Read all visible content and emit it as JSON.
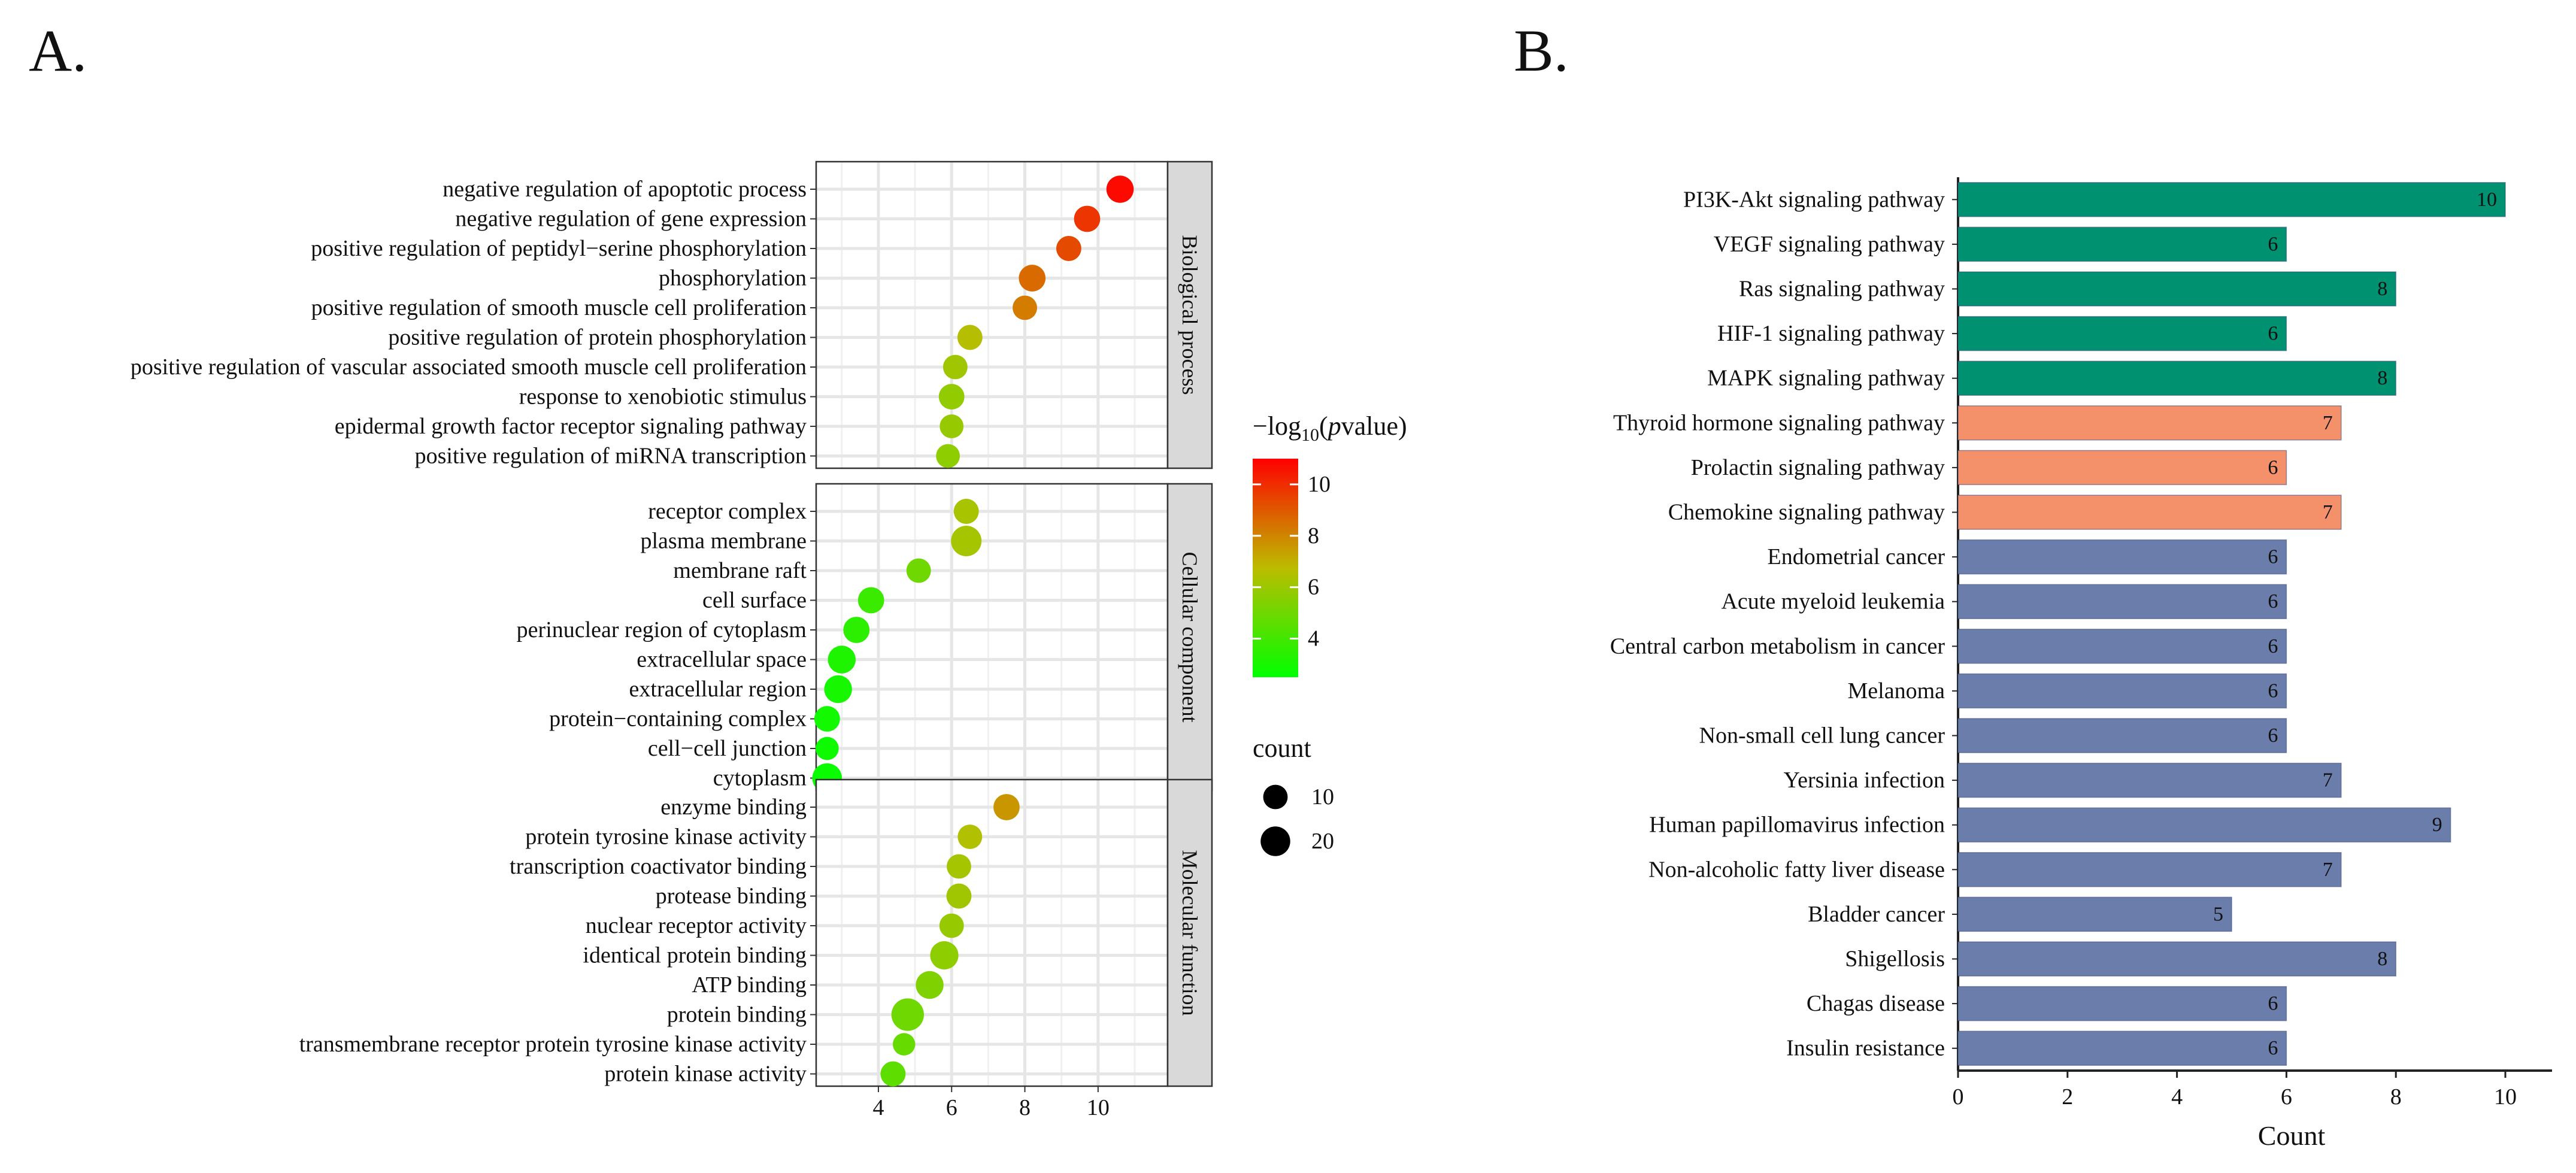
{
  "panel_labels": [
    "A.",
    "B."
  ],
  "chart_data": [
    {
      "type": "scatter",
      "panel": "A.",
      "x_ticks": [
        4,
        6,
        8,
        10
      ],
      "xlim": [
        2.3,
        11.9
      ],
      "facets": [
        {
          "name": "Biological process",
          "terms": [
            {
              "label": "negative regulation of apoptotic process",
              "x": 10.6,
              "count": 15,
              "neglog10p": 10.8
            },
            {
              "label": "negative regulation of gene expression",
              "x": 9.7,
              "count": 13,
              "neglog10p": 9.8
            },
            {
              "label": "positive regulation of peptidyl−serine phosphorylation",
              "x": 9.2,
              "count": 11,
              "neglog10p": 9.3
            },
            {
              "label": "phosphorylation",
              "x": 8.2,
              "count": 14,
              "neglog10p": 8.6
            },
            {
              "label": "positive regulation of smooth muscle cell proliferation",
              "x": 8.0,
              "count": 10,
              "neglog10p": 8.2
            },
            {
              "label": "positive regulation of protein phosphorylation",
              "x": 6.5,
              "count": 11,
              "neglog10p": 6.6
            },
            {
              "label": "positive regulation of vascular associated smooth muscle cell proliferation",
              "x": 6.1,
              "count": 10,
              "neglog10p": 6.1
            },
            {
              "label": "response to xenobiotic stimulus",
              "x": 6.0,
              "count": 12,
              "neglog10p": 5.8
            },
            {
              "label": "epidermal growth factor receptor signaling pathway",
              "x": 6.0,
              "count": 9,
              "neglog10p": 5.9
            },
            {
              "label": "positive regulation of miRNA transcription",
              "x": 5.9,
              "count": 9,
              "neglog10p": 5.7
            }
          ]
        },
        {
          "name": "Cellular component",
          "terms": [
            {
              "label": "receptor complex",
              "x": 6.4,
              "count": 11,
              "neglog10p": 6.3
            },
            {
              "label": "plasma membrane",
              "x": 6.4,
              "count": 22,
              "neglog10p": 6.2
            },
            {
              "label": "membrane raft",
              "x": 5.1,
              "count": 10,
              "neglog10p": 5.0
            },
            {
              "label": "cell surface",
              "x": 3.8,
              "count": 13,
              "neglog10p": 3.8
            },
            {
              "label": "perinuclear region of cytoplasm",
              "x": 3.4,
              "count": 13,
              "neglog10p": 3.5
            },
            {
              "label": "extracellular space",
              "x": 3.0,
              "count": 16,
              "neglog10p": 3.2
            },
            {
              "label": "extracellular region",
              "x": 2.9,
              "count": 16,
              "neglog10p": 3.0
            },
            {
              "label": "protein−containing complex",
              "x": 2.6,
              "count": 12,
              "neglog10p": 2.9
            },
            {
              "label": "cell−cell junction",
              "x": 2.6,
              "count": 8,
              "neglog10p": 2.8
            },
            {
              "label": "cytoplasm",
              "x": 2.6,
              "count": 20,
              "neglog10p": 2.7
            }
          ]
        },
        {
          "name": "Molecular function",
          "terms": [
            {
              "label": "enzyme binding",
              "x": 7.5,
              "count": 13,
              "neglog10p": 7.6
            },
            {
              "label": "protein tyrosine kinase activity",
              "x": 6.5,
              "count": 10,
              "neglog10p": 6.5
            },
            {
              "label": "transcription coactivator binding",
              "x": 6.2,
              "count": 10,
              "neglog10p": 6.2
            },
            {
              "label": "protease binding",
              "x": 6.2,
              "count": 11,
              "neglog10p": 6.1
            },
            {
              "label": "nuclear receptor activity",
              "x": 6.0,
              "count": 10,
              "neglog10p": 5.9
            },
            {
              "label": "identical protein binding",
              "x": 5.8,
              "count": 17,
              "neglog10p": 5.7
            },
            {
              "label": "ATP binding",
              "x": 5.4,
              "count": 16,
              "neglog10p": 5.4
            },
            {
              "label": "protein binding",
              "x": 4.8,
              "count": 27,
              "neglog10p": 5.0
            },
            {
              "label": "transmembrane receptor protein tyrosine kinase activity",
              "x": 4.7,
              "count": 7,
              "neglog10p": 4.8
            },
            {
              "label": "protein kinase activity",
              "x": 4.4,
              "count": 11,
              "neglog10p": 4.6
            }
          ]
        }
      ],
      "color_legend": {
        "title_prefix": "−log",
        "title_sub": "10",
        "title_open": "(",
        "title_italic": "p",
        "title_rest": "value)",
        "ticks": [
          4,
          6,
          8,
          10
        ],
        "range": [
          2.5,
          11.0
        ],
        "colors": [
          "#00ff00",
          "#bcbc00",
          "#ff0000"
        ]
      },
      "size_legend": {
        "title": "count",
        "values": [
          10,
          20
        ]
      }
    },
    {
      "type": "bar",
      "panel": "B.",
      "orientation": "horizontal",
      "xlabel": "Count",
      "xlim": [
        0,
        10.8
      ],
      "x_ticks": [
        0,
        2,
        4,
        6,
        8,
        10
      ],
      "group_colors": [
        "#009270",
        "#f4906a",
        "#6b7dab"
      ],
      "categories": [
        "PI3K-Akt signaling pathway",
        "VEGF signaling pathway",
        "Ras signaling pathway",
        "HIF-1 signaling pathway",
        "MAPK signaling pathway",
        "Thyroid hormone signaling pathway",
        "Prolactin signaling pathway",
        "Chemokine signaling pathway",
        "Endometrial cancer",
        "Acute myeloid leukemia",
        "Central carbon metabolism in cancer",
        "Melanoma",
        "Non-small cell lung cancer",
        "Yersinia infection",
        "Human papillomavirus infection",
        "Non-alcoholic fatty liver disease",
        "Bladder cancer",
        "Shigellosis",
        "Chagas disease",
        "Insulin resistance"
      ],
      "values": [
        10,
        6,
        8,
        6,
        8,
        7,
        6,
        7,
        6,
        6,
        6,
        6,
        6,
        7,
        9,
        7,
        5,
        8,
        6,
        6
      ],
      "groups": [
        0,
        0,
        0,
        0,
        0,
        1,
        1,
        1,
        2,
        2,
        2,
        2,
        2,
        2,
        2,
        2,
        2,
        2,
        2,
        2
      ]
    }
  ]
}
